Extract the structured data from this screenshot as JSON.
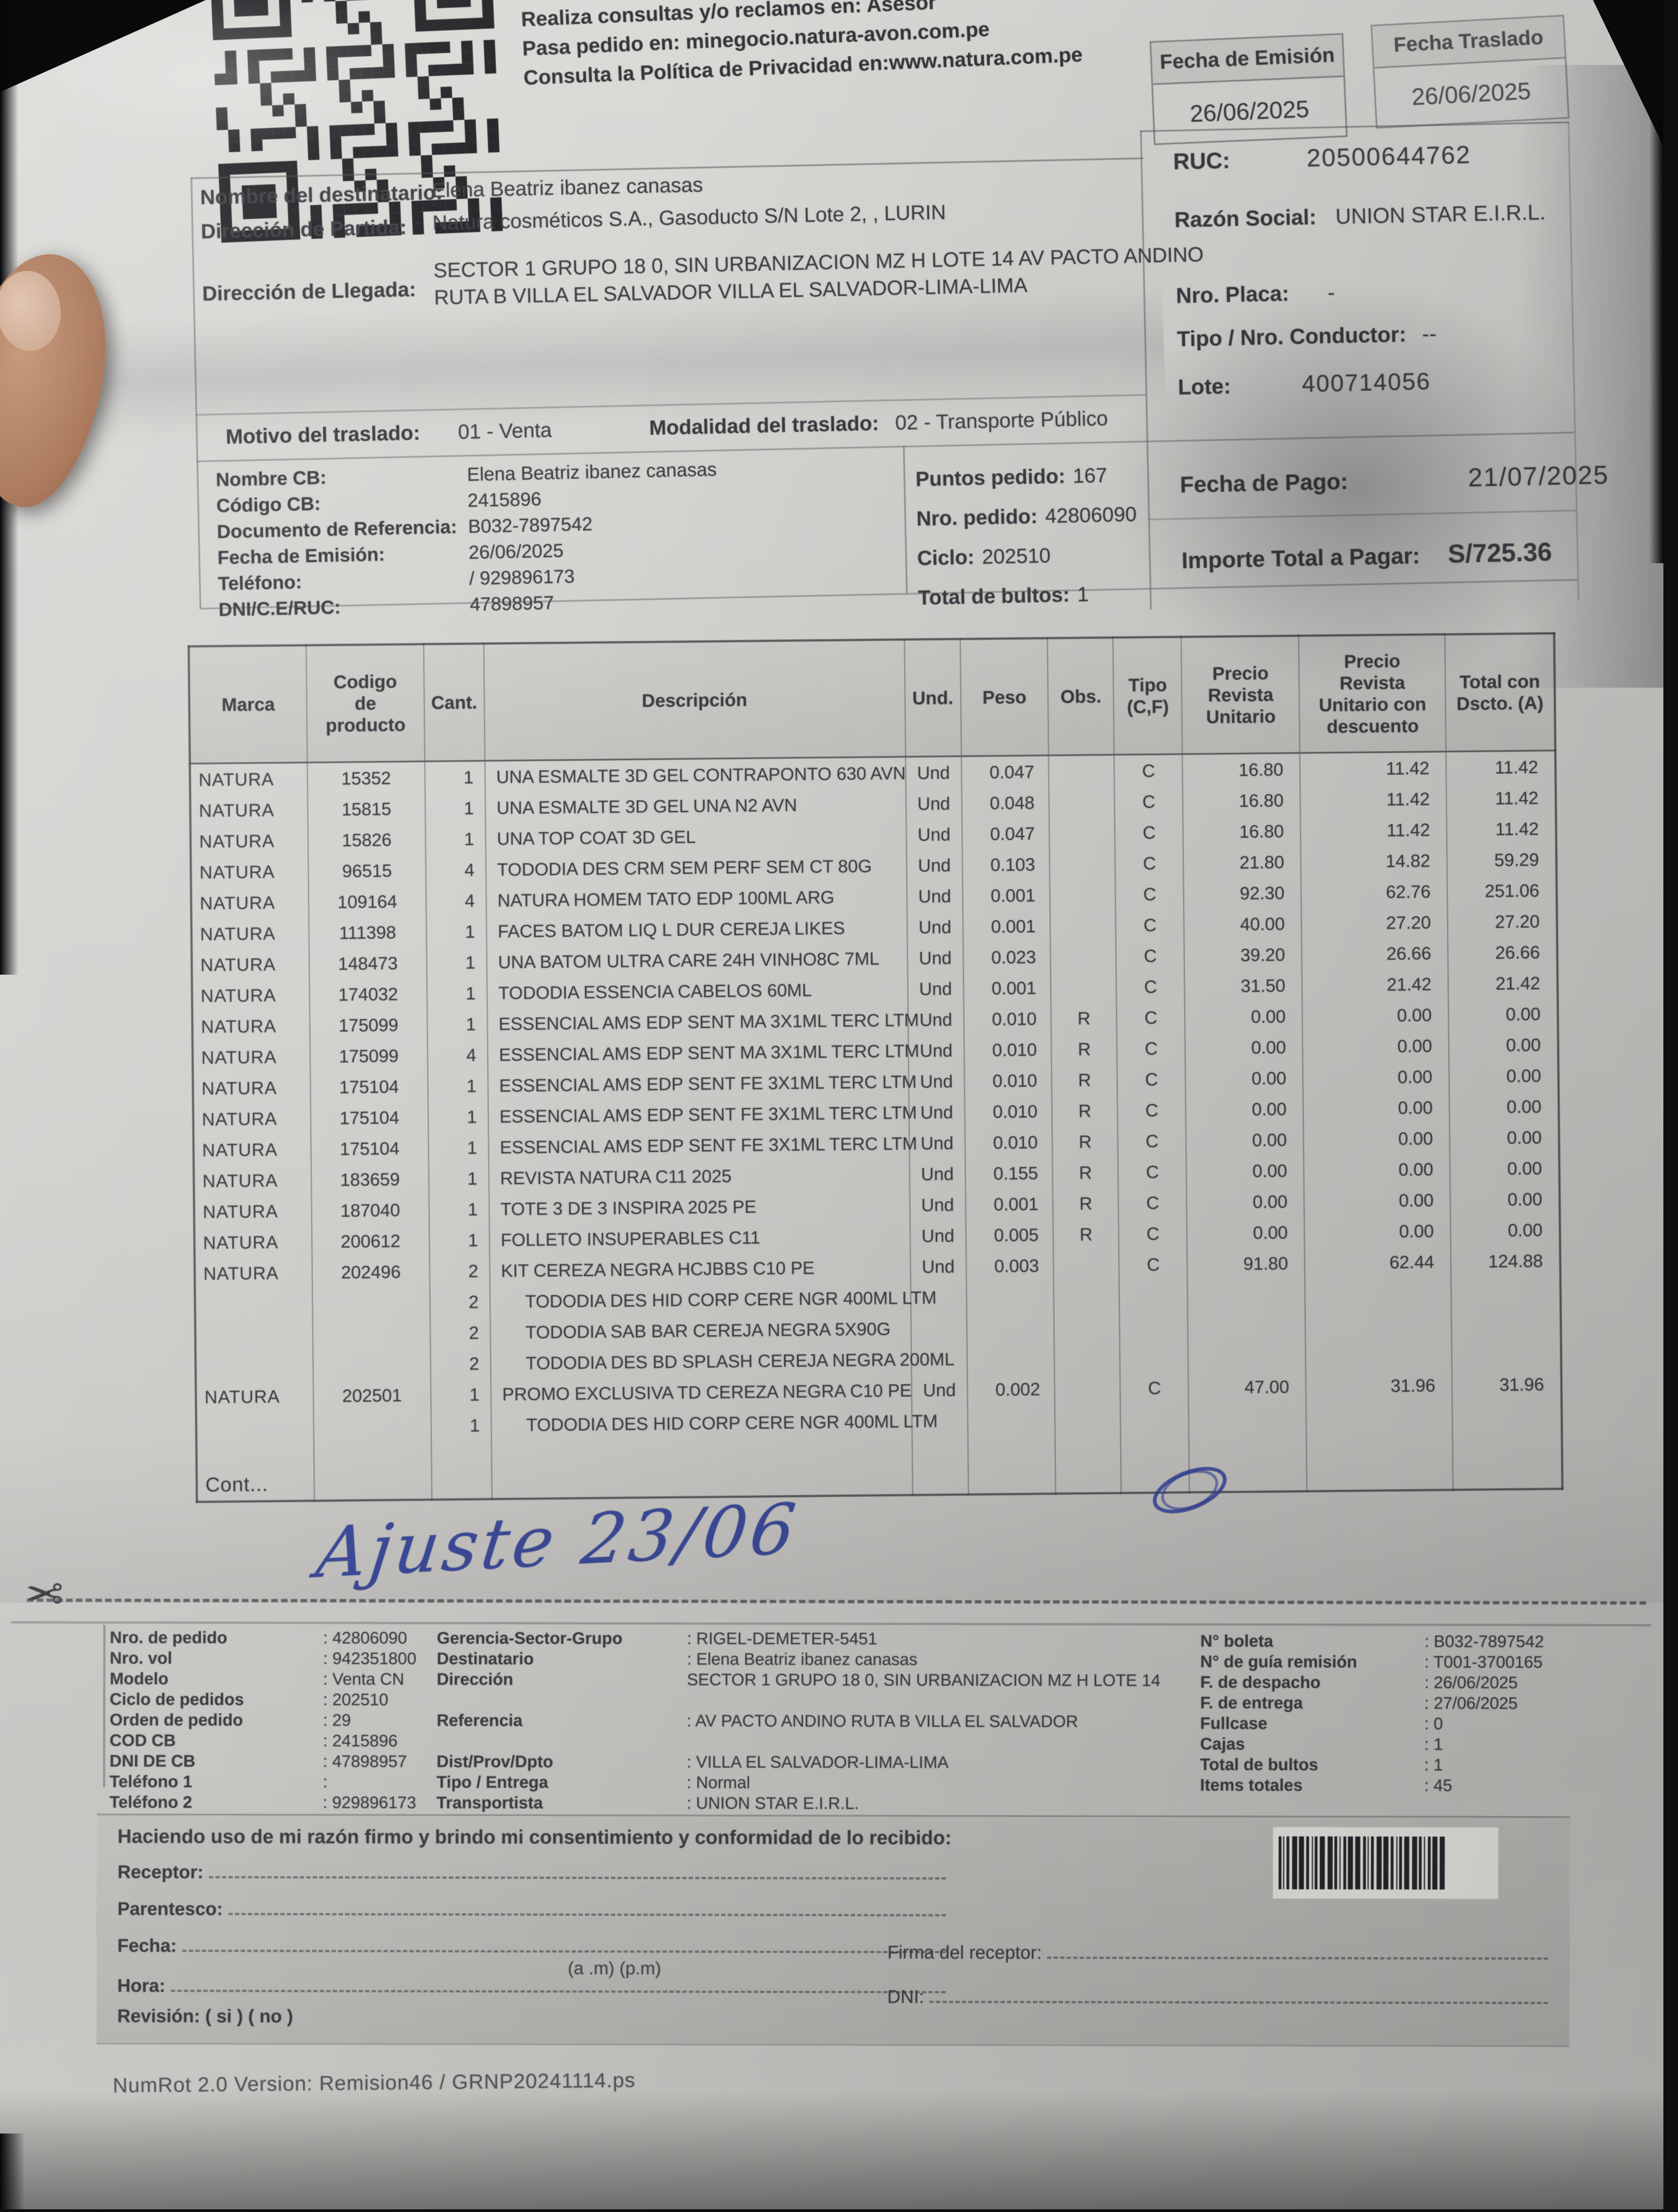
{
  "colors": {
    "paper": "#d6d5d2",
    "text": "#3c3d42",
    "ink_blue": "#30409a",
    "accent_dark": "#0e0e10"
  },
  "header": {
    "qr": "qr-code",
    "contact_lines": [
      "Realiza consultas y/o reclamos en: Asesor",
      "Pasa pedido en: minegocio.natura-avon.com.pe",
      "Consulta la Política de Privacidad en:www.natura.com.pe"
    ],
    "fecha_emision": {
      "label": "Fecha de Emisión",
      "value": "26/06/2025"
    },
    "fecha_traslado": {
      "label": "Fecha Traslado",
      "value": "26/06/2025"
    }
  },
  "empresa": {
    "ruc_label": "RUC:",
    "ruc": "20500644762",
    "razon_label": "Razón Social:",
    "razon": "UNION STAR E.I.R.L.",
    "placa_label": "Nro. Placa:",
    "placa": "-",
    "conductor_label": "Tipo / Nro. Conductor:",
    "conductor": "--",
    "lote_label": "Lote:",
    "lote": "400714056"
  },
  "destinatario": {
    "nombre_label": "Nombre del destinatario:",
    "nombre": "Elena Beatriz ibanez canasas",
    "partida_label": "Dirección de Partida:",
    "partida": "Natura cosméticos S.A., Gasoducto S/N Lote 2, , LURIN",
    "llegada_label": "Dirección de Llegada:",
    "llegada": "SECTOR 1 GRUPO 18 0, SIN URBANIZACION MZ H LOTE 14 AV PACTO ANDINO\nRUTA B VILLA EL SALVADOR VILLA EL SALVADOR-LIMA-LIMA"
  },
  "traslado": {
    "motivo_label": "Motivo del traslado:",
    "motivo": "01 - Venta",
    "modalidad_label": "Modalidad del traslado:",
    "modalidad": "02 - Transporte Público"
  },
  "cb_block": [
    {
      "label": "Nombre CB:",
      "value": "Elena Beatriz ibanez canasas"
    },
    {
      "label": "Código CB:",
      "value": "2415896"
    },
    {
      "label": "Documento de Referencia:",
      "value": "B032-7897542"
    },
    {
      "label": "Fecha de Emisión:",
      "value": "26/06/2025"
    },
    {
      "label": "Teléfono:",
      "value": "/ 929896173"
    },
    {
      "label": "DNI/C.E/RUC:",
      "value": "47898957"
    }
  ],
  "pedido_block": [
    {
      "label": "Puntos pedido:",
      "value": "167"
    },
    {
      "label": "Nro. pedido:",
      "value": "42806090"
    },
    {
      "label": "Ciclo:",
      "value": "202510"
    },
    {
      "label": "Total de bultos:",
      "value": "1"
    }
  ],
  "pago": {
    "fecha_label": "Fecha de Pago:",
    "fecha": "21/07/2025",
    "importe_label": "Importe Total a Pagar:",
    "importe": "S/725.36"
  },
  "products_table": {
    "columns": [
      "Marca",
      "Codigo\nde\nproducto",
      "Cant.",
      "Descripción",
      "Und.",
      "Peso",
      "Obs.",
      "Tipo\n(C,F)",
      "Precio\nRevista\nUnitario",
      "Precio\nRevista\nUnitario con\ndescuento",
      "Total con\nDscto. (A)"
    ],
    "rows": [
      [
        "NATURA",
        "15352",
        "1",
        "UNA ESMALTE 3D GEL CONTRAPONTO 630 AVN",
        "Und",
        "0.047",
        "",
        "C",
        "16.80",
        "11.42",
        "11.42"
      ],
      [
        "NATURA",
        "15815",
        "1",
        "UNA ESMALTE 3D GEL UNA N2 AVN",
        "Und",
        "0.048",
        "",
        "C",
        "16.80",
        "11.42",
        "11.42"
      ],
      [
        "NATURA",
        "15826",
        "1",
        "UNA TOP COAT 3D GEL",
        "Und",
        "0.047",
        "",
        "C",
        "16.80",
        "11.42",
        "11.42"
      ],
      [
        "NATURA",
        "96515",
        "4",
        "TODODIA DES CRM SEM PERF SEM CT 80G",
        "Und",
        "0.103",
        "",
        "C",
        "21.80",
        "14.82",
        "59.29"
      ],
      [
        "NATURA",
        "109164",
        "4",
        "NATURA HOMEM TATO EDP 100ML ARG",
        "Und",
        "0.001",
        "",
        "C",
        "92.30",
        "62.76",
        "251.06"
      ],
      [
        "NATURA",
        "111398",
        "1",
        "FACES BATOM LIQ L DUR CEREJA LIKES",
        "Und",
        "0.001",
        "",
        "C",
        "40.00",
        "27.20",
        "27.20"
      ],
      [
        "NATURA",
        "148473",
        "1",
        "UNA BATOM ULTRA CARE 24H VINHO8C 7ML",
        "Und",
        "0.023",
        "",
        "C",
        "39.20",
        "26.66",
        "26.66"
      ],
      [
        "NATURA",
        "174032",
        "1",
        "TODODIA ESSENCIA CABELOS 60ML",
        "Und",
        "0.001",
        "",
        "C",
        "31.50",
        "21.42",
        "21.42"
      ],
      [
        "NATURA",
        "175099",
        "1",
        "ESSENCIAL AMS EDP SENT MA 3X1ML TERC LTM",
        "Und",
        "0.010",
        "R",
        "C",
        "0.00",
        "0.00",
        "0.00"
      ],
      [
        "NATURA",
        "175099",
        "4",
        "ESSENCIAL AMS EDP SENT MA 3X1ML TERC LTM",
        "Und",
        "0.010",
        "R",
        "C",
        "0.00",
        "0.00",
        "0.00"
      ],
      [
        "NATURA",
        "175104",
        "1",
        "ESSENCIAL AMS EDP SENT FE 3X1ML TERC LTM",
        "Und",
        "0.010",
        "R",
        "C",
        "0.00",
        "0.00",
        "0.00"
      ],
      [
        "NATURA",
        "175104",
        "1",
        "ESSENCIAL AMS EDP SENT FE 3X1ML TERC LTM",
        "Und",
        "0.010",
        "R",
        "C",
        "0.00",
        "0.00",
        "0.00"
      ],
      [
        "NATURA",
        "175104",
        "1",
        "ESSENCIAL AMS EDP SENT FE 3X1ML TERC LTM",
        "Und",
        "0.010",
        "R",
        "C",
        "0.00",
        "0.00",
        "0.00"
      ],
      [
        "NATURA",
        "183659",
        "1",
        "REVISTA NATURA C11 2025",
        "Und",
        "0.155",
        "R",
        "C",
        "0.00",
        "0.00",
        "0.00"
      ],
      [
        "NATURA",
        "187040",
        "1",
        "TOTE 3 DE 3 INSPIRA 2025 PE",
        "Und",
        "0.001",
        "R",
        "C",
        "0.00",
        "0.00",
        "0.00"
      ],
      [
        "NATURA",
        "200612",
        "1",
        "FOLLETO INSUPERABLES C11",
        "Und",
        "0.005",
        "R",
        "C",
        "0.00",
        "0.00",
        "0.00"
      ],
      [
        "NATURA",
        "202496",
        "2",
        "KIT CEREZA NEGRA HCJBBS C10 PE",
        "Und",
        "0.003",
        "",
        "C",
        "91.80",
        "62.44",
        "124.88"
      ],
      [
        "",
        "",
        "2",
        "TODODIA DES HID CORP CERE NGR 400ML LTM",
        "",
        "",
        "",
        "",
        "",
        "",
        ""
      ],
      [
        "",
        "",
        "2",
        "TODODIA SAB BAR CEREJA NEGRA 5X90G",
        "",
        "",
        "",
        "",
        "",
        "",
        ""
      ],
      [
        "",
        "",
        "2",
        "TODODIA DES BD SPLASH CEREJA NEGRA 200ML",
        "",
        "",
        "",
        "",
        "",
        "",
        ""
      ],
      [
        "NATURA",
        "202501",
        "1",
        "PROMO EXCLUSIVA TD CEREZA NEGRA C10 PE",
        "Und",
        "0.002",
        "",
        "C",
        "47.00",
        "31.96",
        "31.96"
      ],
      [
        "",
        "",
        "1",
        "TODODIA DES HID CORP CERE NGR 400ML LTM",
        "",
        "",
        "",
        "",
        "",
        "",
        ""
      ]
    ],
    "cont_label": "Cont..."
  },
  "cut_section": {
    "handwriting": "Ajuste 23/06",
    "scissors": "✂"
  },
  "summary": {
    "col1": [
      {
        "label": "Nro. de pedido",
        "value": ": 42806090"
      },
      {
        "label": "Nro. vol",
        "value": ": 942351800"
      },
      {
        "label": "Modelo",
        "value": ": Venta CN"
      },
      {
        "label": "Ciclo de pedidos",
        "value": ": 202510"
      },
      {
        "label": "Orden de pedido",
        "value": ": 29"
      },
      {
        "label": "COD CB",
        "value": ": 2415896"
      },
      {
        "label": "DNI DE CB",
        "value": ": 47898957"
      },
      {
        "label": "Teléfono 1",
        "value": ":"
      },
      {
        "label": "Teléfono 2",
        "value": ": 929896173"
      }
    ],
    "col2": [
      {
        "label": "Gerencia-Sector-Grupo",
        "value": ": RIGEL-DEMETER-5451"
      },
      {
        "label": "Destinatario",
        "value": ": Elena Beatriz ibanez canasas"
      },
      {
        "label": "Dirección",
        "value": "SECTOR 1 GRUPO 18 0, SIN URBANIZACION MZ H LOTE 14"
      },
      {
        "label": "",
        "value": ""
      },
      {
        "label": "Referencia",
        "value": ": AV PACTO ANDINO RUTA B VILLA EL SALVADOR"
      },
      {
        "label": "",
        "value": ""
      },
      {
        "label": "Dist/Prov/Dpto",
        "value": ": VILLA EL SALVADOR-LIMA-LIMA"
      },
      {
        "label": "Tipo / Entrega",
        "value": ": Normal"
      },
      {
        "label": "Transportista",
        "value": ": UNION STAR E.I.R.L."
      }
    ],
    "col3": [
      {
        "label": "N° boleta",
        "value": ": B032-7897542"
      },
      {
        "label": "N° de guía remisión",
        "value": ": T001-3700165"
      },
      {
        "label": "F. de despacho",
        "value": ": 26/06/2025"
      },
      {
        "label": "F. de entrega",
        "value": ": 27/06/2025"
      },
      {
        "label": "Fullcase",
        "value": ": 0"
      },
      {
        "label": "Cajas",
        "value": ": 1"
      },
      {
        "label": "Total de bultos",
        "value": ": 1"
      },
      {
        "label": "Items totales",
        "value": ": 45"
      }
    ]
  },
  "receipt": {
    "consent": "Haciendo uso de mi razón firmo y brindo mi consentimiento y conformidad de lo recibido:",
    "receptor_label": "Receptor:",
    "parentesco_label": "Parentesco:",
    "fecha_label": "Fecha:",
    "hora_label": "Hora:",
    "ampm": "(a .m) (p.m)",
    "revision": "Revisión: ( si ) ( no )",
    "firma_label": "Firma del receptor:",
    "dni_label": "DNI:",
    "barcode": "barcode"
  },
  "footer": "NumRot 2.0 Version: Remision46 / GRNP20241114.ps"
}
